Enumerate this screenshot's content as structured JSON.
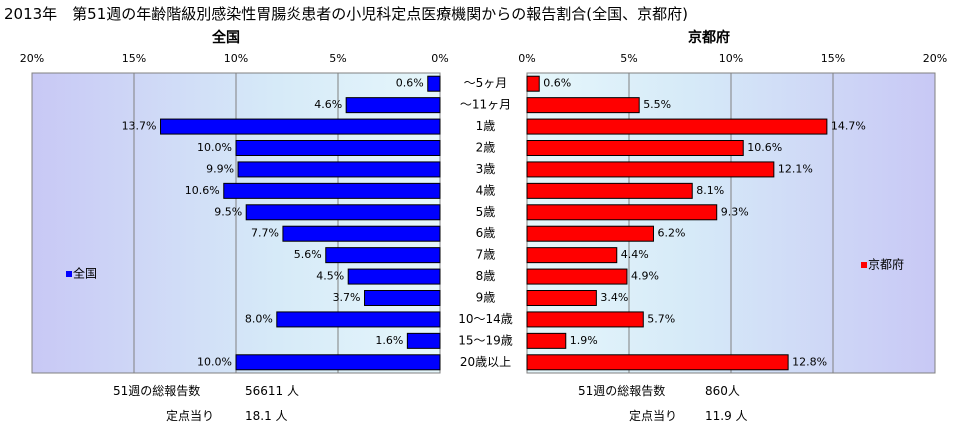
{
  "title": "2013年　第51週の年齢階級別感染性胃腸炎患者の小児科定点医療機関からの報告割合(全国、京都府)",
  "chart_data": {
    "type": "bar",
    "orientation": "horizontal",
    "layout": "back-to-back",
    "categories": [
      "～5ヶ月",
      "～11ヶ月",
      "1歳",
      "2歳",
      "3歳",
      "4歳",
      "5歳",
      "6歳",
      "7歳",
      "8歳",
      "9歳",
      "10～14歳",
      "15～19歳",
      "20歳以上"
    ],
    "series": [
      {
        "name": "全国",
        "panel_title": "全国",
        "color": "#0000FF",
        "values": [
          0.6,
          4.6,
          13.7,
          10.0,
          9.9,
          10.6,
          9.5,
          7.7,
          5.6,
          4.5,
          3.7,
          8.0,
          1.6,
          10.0
        ],
        "labels": [
          "0.6%",
          "4.6%",
          "13.7%",
          "10.0%",
          "9.9%",
          "10.6%",
          "9.5%",
          "7.7%",
          "5.6%",
          "4.5%",
          "3.7%",
          "8.0%",
          "1.6%",
          "10.0%"
        ],
        "xlim": [
          0,
          20
        ],
        "ticks": [
          "20%",
          "15%",
          "10%",
          "5%",
          "0%"
        ],
        "legend": "全国",
        "legend_position": "left"
      },
      {
        "name": "京都府",
        "panel_title": "京都府",
        "color": "#FF0000",
        "values": [
          0.6,
          5.5,
          14.7,
          10.6,
          12.1,
          8.1,
          9.3,
          6.2,
          4.4,
          4.9,
          3.4,
          5.7,
          1.9,
          12.8
        ],
        "labels": [
          "0.6%",
          "5.5%",
          "14.7%",
          "10.6%",
          "12.1%",
          "8.1%",
          "9.3%",
          "6.2%",
          "4.4%",
          "4.9%",
          "3.4%",
          "5.7%",
          "1.9%",
          "12.8%"
        ],
        "xlim": [
          0,
          20
        ],
        "ticks": [
          "0%",
          "5%",
          "10%",
          "15%",
          "20%"
        ],
        "legend": "京都府",
        "legend_position": "right"
      }
    ],
    "grid": true
  },
  "footer": {
    "national": {
      "total_label": "51週の総報告数",
      "total_value": "56611 人",
      "per_site_label": "定点当り",
      "per_site_value": "18.1 人"
    },
    "kyoto": {
      "total_label": "51週の総報告数",
      "total_value": "860人",
      "per_site_label": "定点当り",
      "per_site_value": "11.9 人"
    }
  }
}
